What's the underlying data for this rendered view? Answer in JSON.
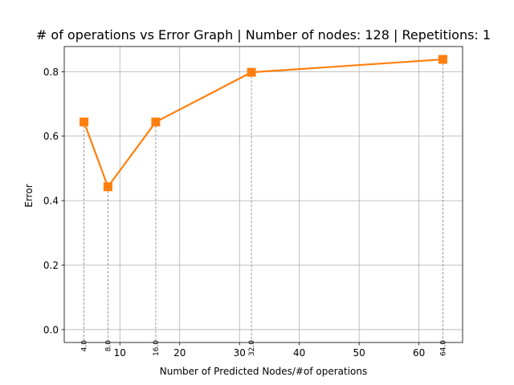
{
  "chart_data": {
    "type": "line",
    "title": "# of operations vs Error Graph | Number of nodes: 128 | Repetitions: 1",
    "xlabel": "Number of Predicted Nodes/#of operations",
    "ylabel": "Error",
    "xlim": [
      0.7,
      67.3
    ],
    "ylim": [
      -0.04,
      0.878
    ],
    "xticks": [
      10,
      20,
      30,
      40,
      50,
      60
    ],
    "yticks": [
      0.0,
      0.2,
      0.4,
      0.6,
      0.8
    ],
    "xtick_labels": [
      "10",
      "20",
      "30",
      "40",
      "50",
      "60"
    ],
    "ytick_labels": [
      "0.0",
      "0.2",
      "0.4",
      "0.6",
      "0.8"
    ],
    "grid": true,
    "color": "#ff7f0e",
    "marker": "square",
    "x": [
      4,
      8,
      16,
      32,
      64
    ],
    "y": [
      0.644,
      0.443,
      0.644,
      0.798,
      0.838
    ],
    "point_labels": [
      "4.0",
      "8.0",
      "16.0",
      "32.0",
      "64.0"
    ]
  }
}
